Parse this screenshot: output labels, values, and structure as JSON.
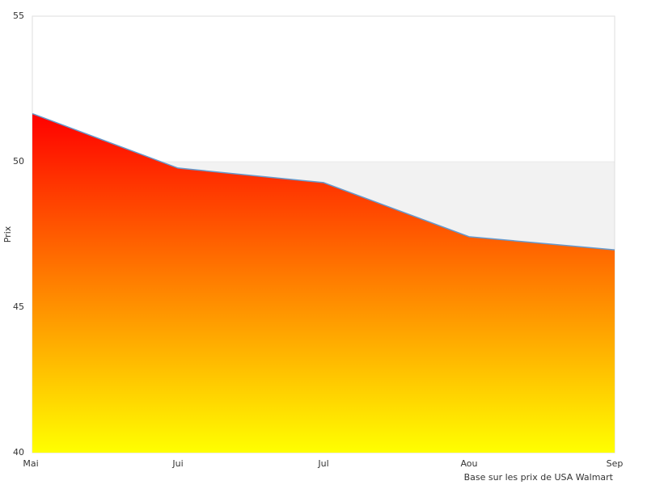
{
  "chart_data": {
    "type": "area",
    "categories": [
      "Mai",
      "Jui",
      "Jul",
      "Aou",
      "Sep"
    ],
    "values": [
      51.65,
      49.78,
      49.28,
      47.42,
      46.97
    ],
    "ylabel": "Prix",
    "ylim": [
      40,
      55
    ],
    "yticks": [
      40,
      45,
      50,
      55
    ],
    "band_color": "#f2f2f2",
    "line_color": "#6699cc",
    "gradient": [
      "#ff0000",
      "#ffff00"
    ],
    "footnote": "Base sur les prix de USA Walmart"
  }
}
